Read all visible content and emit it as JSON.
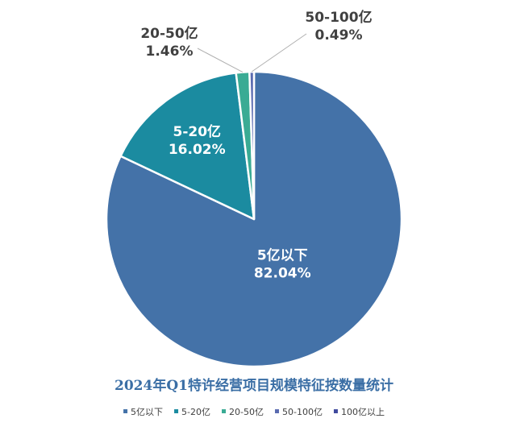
{
  "chart_data": {
    "type": "pie",
    "title": "2024年Q1特许经营项目规模特征按数量统计",
    "categories": [
      "5亿以下",
      "5-20亿",
      "20-50亿",
      "50-100亿",
      "100亿以上"
    ],
    "values": [
      82.04,
      16.02,
      1.46,
      0.49,
      0.0
    ],
    "value_labels": [
      "82.04%",
      "16.02%",
      "1.46%",
      "0.49%",
      ""
    ],
    "colors": [
      "#4472a8",
      "#1b8ba0",
      "#3aab94",
      "#5a6bb0",
      "#3f4a9e"
    ],
    "legend_position": "bottom"
  }
}
